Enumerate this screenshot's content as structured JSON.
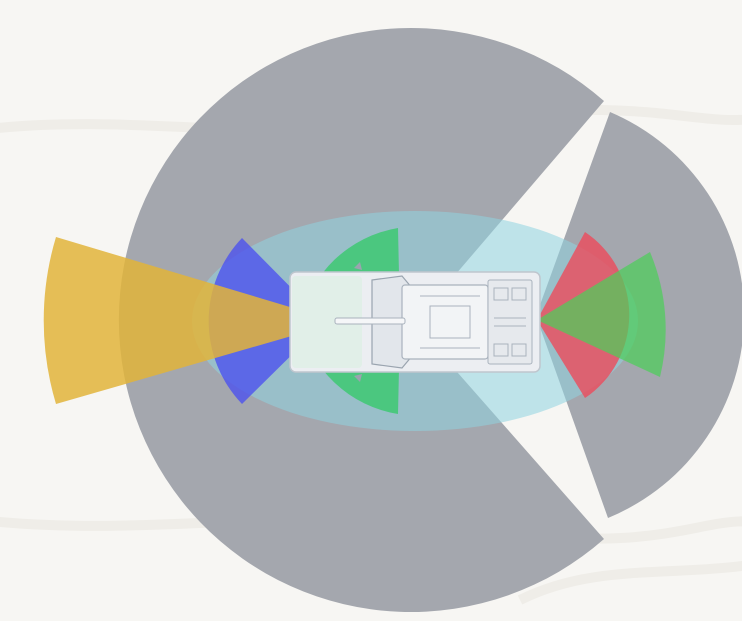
{
  "diagram": {
    "background": "#f7f6f3",
    "colors": {
      "long_range": "#a4a7ae",
      "surround": "#8fd3e0",
      "front_narrow": "#e2b43a",
      "front_wide": "#4a4ff0",
      "front_side": "#35c96a",
      "rear_red": "#ea4d5e",
      "rear_green": "#4ccf5a",
      "vehicle_body": "#eceef2",
      "vehicle_detail": "#a9b2bd"
    },
    "icons": [
      "vehicle-top-view-icon"
    ]
  }
}
